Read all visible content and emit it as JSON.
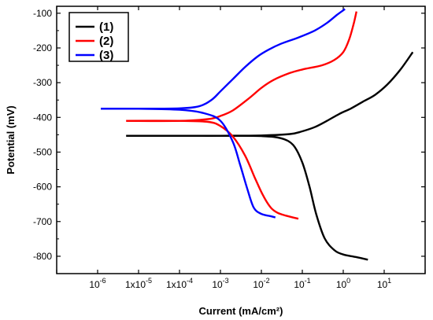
{
  "chart_data": {
    "type": "line",
    "xlabel": "Current (mA/cm²)",
    "ylabel": "Potential (mV)",
    "x_scale": "log",
    "xlim": [
      1e-07,
      100
    ],
    "ylim": [
      -850,
      -80
    ],
    "x_ticks": [
      {
        "value": 1e-06,
        "label": "10",
        "sup": "-6"
      },
      {
        "value": 1e-05,
        "label": "1x10",
        "sup": "-5"
      },
      {
        "value": 0.0001,
        "label": "1x10",
        "sup": "-4"
      },
      {
        "value": 0.001,
        "label": "10",
        "sup": "-3"
      },
      {
        "value": 0.01,
        "label": "10",
        "sup": "-2"
      },
      {
        "value": 0.1,
        "label": "10",
        "sup": "-1"
      },
      {
        "value": 1,
        "label": "10",
        "sup": "0"
      },
      {
        "value": 10,
        "label": "10",
        "sup": "1"
      }
    ],
    "y_ticks": [
      -100,
      -200,
      -300,
      -400,
      -500,
      -600,
      -700,
      -800
    ],
    "y_tick_labels": [
      "-100",
      "-200",
      "-300",
      "-400",
      "-500",
      "-600",
      "-700",
      "-800"
    ],
    "grid": false,
    "legend_position": "top-left",
    "series": [
      {
        "name": "(1)",
        "color": "#000000",
        "anodic": [
          [
            5e-06,
            -453
          ],
          [
            0.0001,
            -453
          ],
          [
            0.001,
            -453
          ],
          [
            0.01,
            -452
          ],
          [
            0.05,
            -448
          ],
          [
            0.1,
            -440
          ],
          [
            0.2,
            -428
          ],
          [
            0.4,
            -410
          ],
          [
            0.8,
            -390
          ],
          [
            1.5,
            -375
          ],
          [
            3,
            -355
          ],
          [
            6,
            -335
          ],
          [
            12,
            -305
          ],
          [
            25,
            -262
          ],
          [
            50,
            -212
          ]
        ],
        "cathodic": [
          [
            5e-06,
            -453
          ],
          [
            0.0001,
            -453
          ],
          [
            0.001,
            -453
          ],
          [
            0.01,
            -454
          ],
          [
            0.03,
            -460
          ],
          [
            0.06,
            -480
          ],
          [
            0.1,
            -530
          ],
          [
            0.15,
            -600
          ],
          [
            0.22,
            -680
          ],
          [
            0.35,
            -748
          ],
          [
            0.6,
            -782
          ],
          [
            1.0,
            -795
          ],
          [
            2.0,
            -802
          ],
          [
            4.0,
            -810
          ]
        ]
      },
      {
        "name": "(2)",
        "color": "#ff0000",
        "anodic": [
          [
            5e-06,
            -410
          ],
          [
            0.0001,
            -410
          ],
          [
            0.0005,
            -405
          ],
          [
            0.001,
            -396
          ],
          [
            0.002,
            -380
          ],
          [
            0.005,
            -345
          ],
          [
            0.01,
            -315
          ],
          [
            0.02,
            -292
          ],
          [
            0.05,
            -272
          ],
          [
            0.1,
            -262
          ],
          [
            0.3,
            -250
          ],
          [
            0.6,
            -235
          ],
          [
            1.0,
            -212
          ],
          [
            1.4,
            -175
          ],
          [
            1.8,
            -130
          ],
          [
            2.1,
            -95
          ]
        ],
        "cathodic": [
          [
            5e-06,
            -410
          ],
          [
            0.0001,
            -410
          ],
          [
            0.0005,
            -413
          ],
          [
            0.001,
            -425
          ],
          [
            0.002,
            -455
          ],
          [
            0.004,
            -510
          ],
          [
            0.007,
            -575
          ],
          [
            0.011,
            -625
          ],
          [
            0.017,
            -660
          ],
          [
            0.025,
            -675
          ],
          [
            0.04,
            -683
          ],
          [
            0.08,
            -692
          ]
        ]
      },
      {
        "name": "(3)",
        "color": "#0000ff",
        "anodic": [
          [
            1.2e-06,
            -375
          ],
          [
            1e-05,
            -375
          ],
          [
            0.0001,
            -374
          ],
          [
            0.0003,
            -368
          ],
          [
            0.0006,
            -350
          ],
          [
            0.001,
            -325
          ],
          [
            0.002,
            -290
          ],
          [
            0.004,
            -255
          ],
          [
            0.008,
            -225
          ],
          [
            0.015,
            -205
          ],
          [
            0.03,
            -188
          ],
          [
            0.08,
            -170
          ],
          [
            0.2,
            -150
          ],
          [
            0.4,
            -128
          ],
          [
            0.7,
            -105
          ],
          [
            1.1,
            -88
          ]
        ],
        "cathodic": [
          [
            1.2e-06,
            -375
          ],
          [
            1e-05,
            -375
          ],
          [
            0.0001,
            -378
          ],
          [
            0.0004,
            -388
          ],
          [
            0.001,
            -410
          ],
          [
            0.002,
            -470
          ],
          [
            0.003,
            -535
          ],
          [
            0.0045,
            -605
          ],
          [
            0.0065,
            -660
          ],
          [
            0.01,
            -678
          ],
          [
            0.016,
            -684
          ],
          [
            0.022,
            -688
          ]
        ]
      }
    ]
  }
}
